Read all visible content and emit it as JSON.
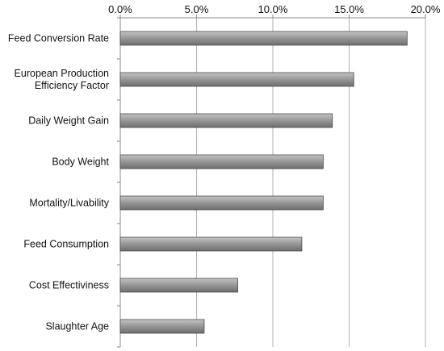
{
  "chart_data": {
    "type": "bar",
    "orientation": "horizontal",
    "axis_position": "top",
    "grid": true,
    "xlim": [
      0,
      20
    ],
    "x_ticks": [
      {
        "value": 0,
        "label": "0.0%"
      },
      {
        "value": 5,
        "label": "5.0%"
      },
      {
        "value": 10,
        "label": "10.0%"
      },
      {
        "value": 15,
        "label": "15.0%"
      },
      {
        "value": 20,
        "label": "20.0%"
      }
    ],
    "categories": [
      [
        "Feed Conversion Rate"
      ],
      [
        "European Production",
        "Efficiency Factor"
      ],
      [
        "Daily Weight Gain"
      ],
      [
        "Body Weight"
      ],
      [
        "Mortality/Livability"
      ],
      [
        "Feed Consumption"
      ],
      [
        "Cost Effectiviness"
      ],
      [
        "Slaughter Age"
      ]
    ],
    "values": [
      18.8,
      15.3,
      13.9,
      13.3,
      13.3,
      11.9,
      7.7,
      5.5
    ],
    "bar_color": "#8c8c8c",
    "grid_color": "#b0b0b0"
  }
}
